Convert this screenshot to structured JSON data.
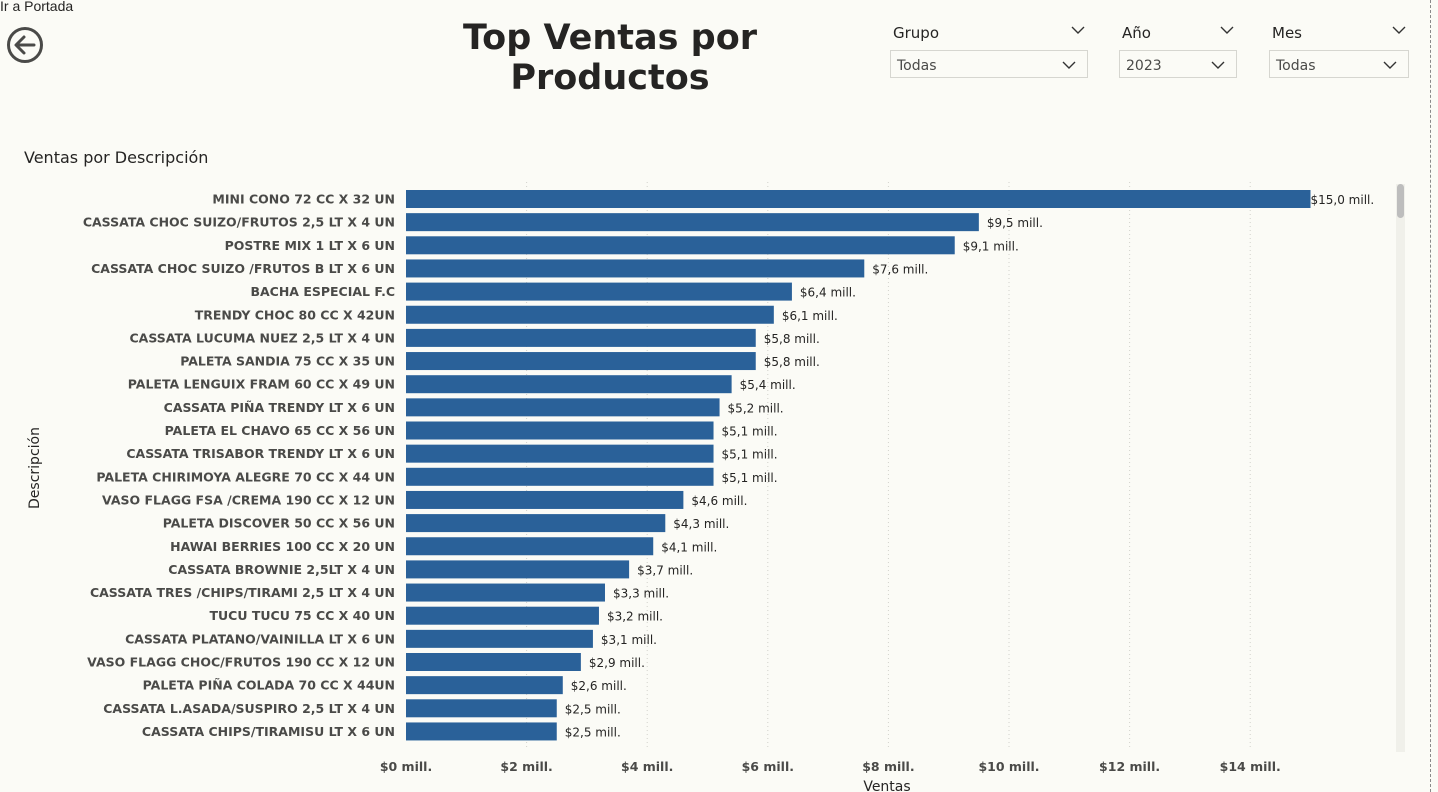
{
  "nav": {
    "back_label": "Ir a Portada"
  },
  "header": {
    "title": "Top Ventas por Productos"
  },
  "slicers": [
    {
      "label": "Grupo",
      "value": "Todas"
    },
    {
      "label": "Año",
      "value": "2023"
    },
    {
      "label": "Mes",
      "value": "Todas"
    }
  ],
  "visual": {
    "title": "Ventas por Descripción"
  },
  "colors": {
    "bar": "#2A6199",
    "background": "#FBFBF6",
    "grid": "#d2d2cc"
  },
  "chart_data": {
    "type": "bar",
    "orientation": "horizontal",
    "xlabel": "Ventas",
    "ylabel": "Descripción",
    "xlim": [
      0,
      15.8
    ],
    "xticks": [
      {
        "value": 0,
        "label": "$0 mill."
      },
      {
        "value": 2,
        "label": "$2 mill."
      },
      {
        "value": 4,
        "label": "$4 mill."
      },
      {
        "value": 6,
        "label": "$6 mill."
      },
      {
        "value": 8,
        "label": "$8 mill."
      },
      {
        "value": 10,
        "label": "$10 mill."
      },
      {
        "value": 12,
        "label": "$12 mill."
      },
      {
        "value": 14,
        "label": "$14 mill."
      }
    ],
    "grid": "vertical-dotted",
    "categories": [
      "MINI CONO 72 CC X 32 UN",
      "CASSATA CHOC SUIZO/FRUTOS 2,5 LT X 4 UN",
      "POSTRE MIX 1 LT X 6 UN",
      "CASSATA CHOC SUIZO /FRUTOS B LT X 6 UN",
      "BACHA ESPECIAL F.C",
      "TRENDY CHOC 80 CC X 42UN",
      "CASSATA LUCUMA NUEZ 2,5 LT X 4 UN",
      "PALETA SANDIA 75 CC X 35 UN",
      "PALETA LENGUIX FRAM 60 CC X 49 UN",
      "CASSATA PIÑA TRENDY LT X 6 UN",
      "PALETA EL CHAVO 65 CC X 56 UN",
      "CASSATA TRISABOR TRENDY LT X 6 UN",
      "PALETA CHIRIMOYA ALEGRE 70 CC X 44 UN",
      "VASO FLAGG FSA /CREMA 190 CC X 12 UN",
      "PALETA DISCOVER 50 CC X 56 UN",
      "HAWAI BERRIES 100 CC X 20 UN",
      "CASSATA BROWNIE 2,5LT X 4 UN",
      "CASSATA TRES /CHIPS/TIRAMI 2,5 LT X 4 UN",
      "TUCU TUCU 75 CC X 40 UN",
      "CASSATA PLATANO/VAINILLA LT X 6 UN",
      "VASO FLAGG CHOC/FRUTOS 190 CC X 12 UN",
      "PALETA PIÑA COLADA 70 CC X 44UN",
      "CASSATA L.ASADA/SUSPIRO 2,5 LT X 4 UN",
      "CASSATA CHIPS/TIRAMISU LT X 6 UN"
    ],
    "values": [
      15.0,
      9.5,
      9.1,
      7.6,
      6.4,
      6.1,
      5.8,
      5.8,
      5.4,
      5.2,
      5.1,
      5.1,
      5.1,
      4.6,
      4.3,
      4.1,
      3.7,
      3.3,
      3.2,
      3.1,
      2.9,
      2.6,
      2.5,
      2.5
    ],
    "labels": [
      "$15,0 mill.",
      "$9,5 mill.",
      "$9,1 mill.",
      "$7,6 mill.",
      "$6,4 mill.",
      "$6,1 mill.",
      "$5,8 mill.",
      "$5,8 mill.",
      "$5,4 mill.",
      "$5,2 mill.",
      "$5,1 mill.",
      "$5,1 mill.",
      "$5,1 mill.",
      "$4,6 mill.",
      "$4,3 mill.",
      "$4,1 mill.",
      "$3,7 mill.",
      "$3,3 mill.",
      "$3,2 mill.",
      "$3,1 mill.",
      "$2,9 mill.",
      "$2,6 mill.",
      "$2,5 mill.",
      "$2,5 mill."
    ]
  }
}
